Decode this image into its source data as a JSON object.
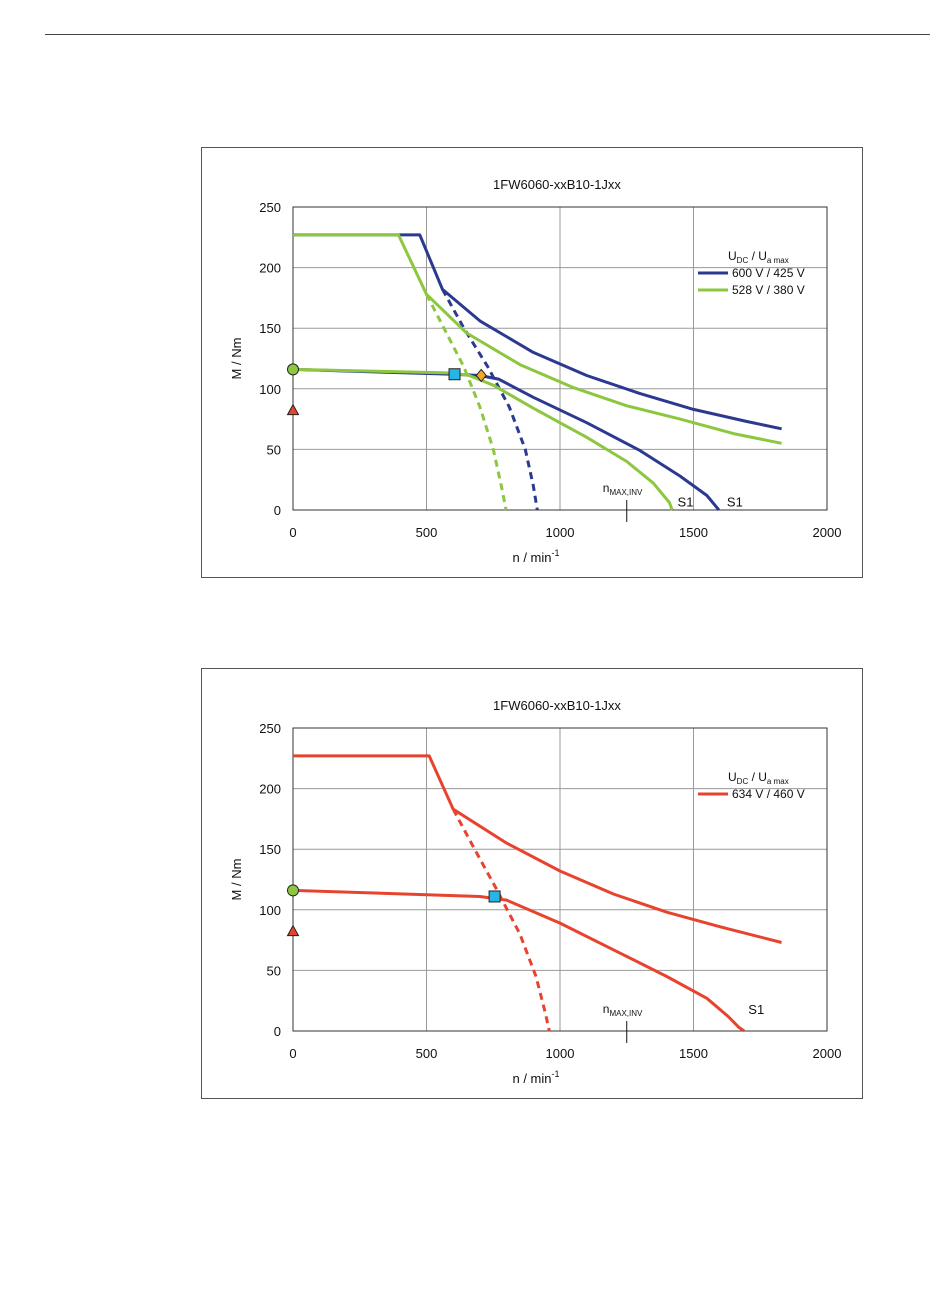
{
  "chart_data": [
    {
      "type": "line",
      "title": "1FW6060-xxB10-1Jxx",
      "xlabel": "n / min",
      "xlabel_sup": "-1",
      "ylabel": "M / Nm",
      "xlim": [
        0,
        2000
      ],
      "ylim": [
        0,
        250
      ],
      "xticks": [
        0,
        500,
        1000,
        1500,
        2000
      ],
      "yticks": [
        0,
        50,
        100,
        150,
        200,
        250
      ],
      "grid": true,
      "legend_placement": "right",
      "legend_title": {
        "u1": "U",
        "u1_sub": "DC",
        "sep": "  /  ",
        "u2": "U",
        "u2_sub": "a max"
      },
      "annotation": {
        "label": "n",
        "label_sub": "MAX,INV",
        "x": 1250
      },
      "series": [
        {
          "name": "600 V / 425 V",
          "color": "#2b3990",
          "peak": [
            [
              0,
              227
            ],
            [
              475,
              227
            ],
            [
              560,
              182
            ],
            [
              700,
              156
            ],
            [
              900,
              130
            ],
            [
              1100,
              111
            ],
            [
              1300,
              96
            ],
            [
              1500,
              83
            ],
            [
              1700,
              73
            ],
            [
              1830,
              67
            ]
          ],
          "peak_dashed": [
            [
              560,
              182
            ],
            [
              640,
              150
            ],
            [
              730,
              118
            ],
            [
              810,
              85
            ],
            [
              870,
              50
            ],
            [
              900,
              20
            ],
            [
              915,
              0
            ]
          ],
          "s1": [
            [
              0,
              116
            ],
            [
              600,
              112
            ],
            [
              700,
              111
            ],
            [
              770,
              108
            ],
            [
              900,
              93
            ],
            [
              1100,
              72
            ],
            [
              1300,
              49
            ],
            [
              1450,
              28
            ],
            [
              1550,
              12
            ],
            [
              1595,
              0
            ]
          ],
          "s1_label": "S1",
          "s1_label_x": 1655,
          "s1_label_y": 3
        },
        {
          "name": "528 V / 380 V",
          "color": "#8dc63f",
          "peak": [
            [
              0,
              227
            ],
            [
              395,
              227
            ],
            [
              500,
              178
            ],
            [
              650,
              146
            ],
            [
              850,
              120
            ],
            [
              1050,
              101
            ],
            [
              1250,
              86
            ],
            [
              1450,
              75
            ],
            [
              1650,
              63
            ],
            [
              1830,
              55
            ]
          ],
          "peak_dashed": [
            [
              500,
              178
            ],
            [
              570,
              148
            ],
            [
              640,
              118
            ],
            [
              700,
              85
            ],
            [
              750,
              50
            ],
            [
              780,
              20
            ],
            [
              798,
              0
            ]
          ],
          "s1": [
            [
              0,
              116
            ],
            [
              600,
              113
            ],
            [
              660,
              111
            ],
            [
              750,
              103
            ],
            [
              900,
              84
            ],
            [
              1100,
              60
            ],
            [
              1250,
              40
            ],
            [
              1350,
              22
            ],
            [
              1410,
              6
            ],
            [
              1420,
              0
            ]
          ],
          "s1_label": "S1",
          "s1_label_x": 1470,
          "s1_label_y": 3
        }
      ],
      "markers": [
        {
          "shape": "circle",
          "x": 0,
          "y": 116,
          "color": "#8dc63f"
        },
        {
          "shape": "triangle",
          "x": 0,
          "y": 82,
          "color": "#e8432e"
        },
        {
          "shape": "square",
          "x": 605,
          "y": 112,
          "color": "#27b5e6"
        },
        {
          "shape": "diamond",
          "x": 705,
          "y": 111,
          "color": "#f5a623"
        }
      ]
    },
    {
      "type": "line",
      "title": "1FW6060-xxB10-1Jxx",
      "xlabel": "n / min",
      "xlabel_sup": "-1",
      "ylabel": "M / Nm",
      "xlim": [
        0,
        2000
      ],
      "ylim": [
        0,
        250
      ],
      "xticks": [
        0,
        500,
        1000,
        1500,
        2000
      ],
      "yticks": [
        0,
        50,
        100,
        150,
        200,
        250
      ],
      "grid": true,
      "legend_placement": "right",
      "legend_title": {
        "u1": "U",
        "u1_sub": "DC",
        "sep": "  /  ",
        "u2": "U",
        "u2_sub": "a max"
      },
      "annotation": {
        "label": "n",
        "label_sub": "MAX,INV",
        "x": 1250
      },
      "series": [
        {
          "name": "634 V / 460 V",
          "color": "#e8432e",
          "peak": [
            [
              0,
              227
            ],
            [
              510,
              227
            ],
            [
              600,
              183
            ],
            [
              800,
              155
            ],
            [
              1000,
              132
            ],
            [
              1200,
              113
            ],
            [
              1400,
              98
            ],
            [
              1600,
              86
            ],
            [
              1830,
              73
            ]
          ],
          "peak_dashed": [
            [
              600,
              183
            ],
            [
              680,
              150
            ],
            [
              760,
              118
            ],
            [
              850,
              80
            ],
            [
              910,
              45
            ],
            [
              945,
              15
            ],
            [
              960,
              0
            ]
          ],
          "s1": [
            [
              0,
              116
            ],
            [
              700,
              111
            ],
            [
              800,
              108
            ],
            [
              1000,
              89
            ],
            [
              1200,
              67
            ],
            [
              1400,
              45
            ],
            [
              1550,
              27
            ],
            [
              1630,
              12
            ],
            [
              1670,
              3
            ],
            [
              1690,
              0
            ]
          ],
          "s1_label": "S1",
          "s1_label_x": 1735,
          "s1_label_y": 14
        }
      ],
      "markers": [
        {
          "shape": "circle",
          "x": 0,
          "y": 116,
          "color": "#8dc63f"
        },
        {
          "shape": "triangle",
          "x": 0,
          "y": 82,
          "color": "#e8432e"
        },
        {
          "shape": "square",
          "x": 755,
          "y": 111,
          "color": "#27b5e6"
        }
      ]
    }
  ]
}
